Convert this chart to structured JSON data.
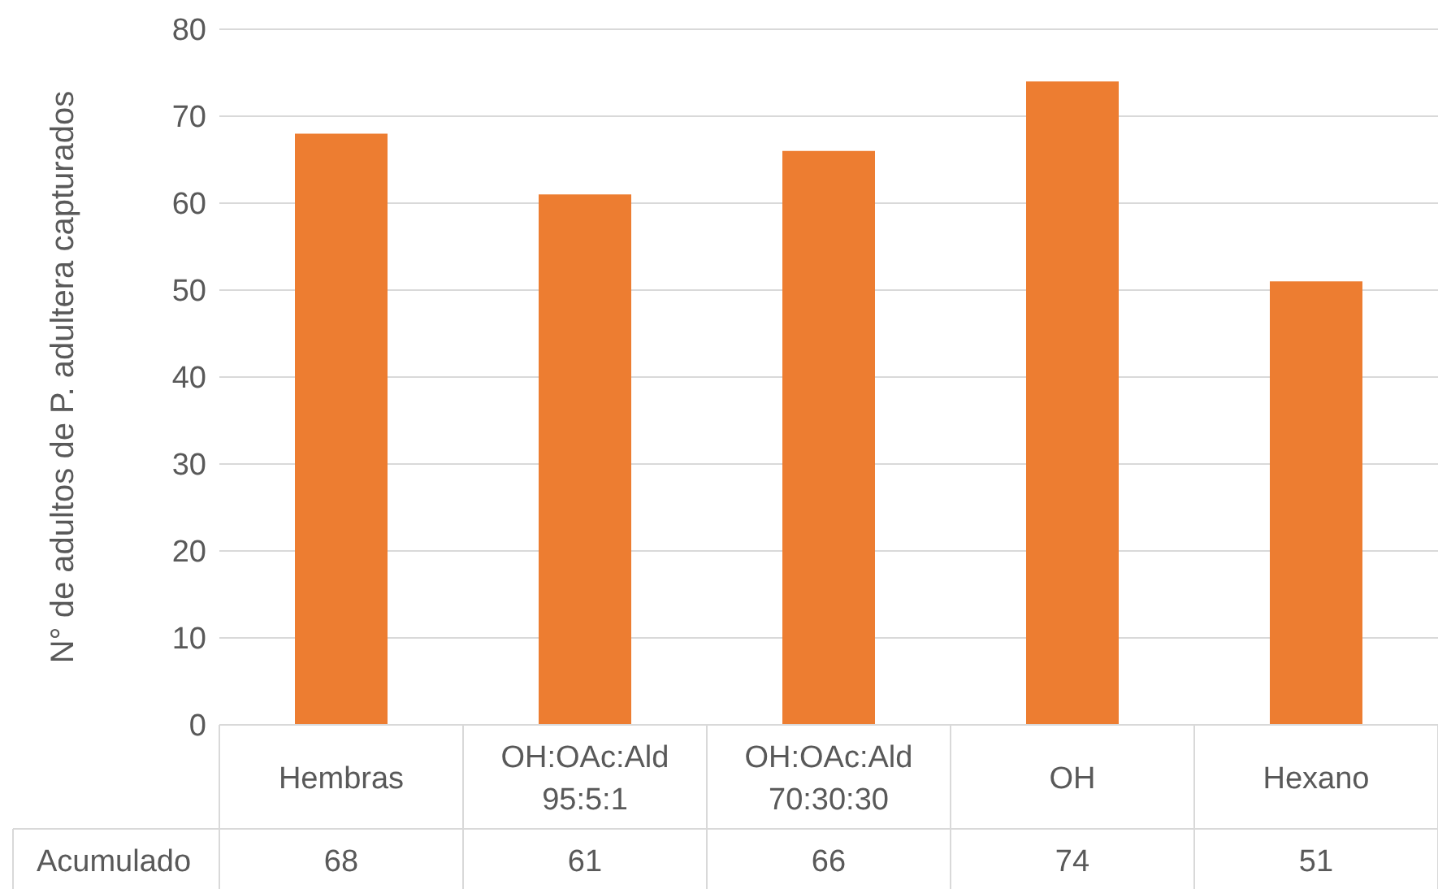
{
  "chart_data": {
    "type": "bar",
    "ylabel": "N° de adultos de P. adultera capturados",
    "categories": [
      "Hembras",
      "OH:OAc:Ald 95:5:1",
      "OH:OAc:Ald 70:30:30",
      "OH",
      "Hexano"
    ],
    "series": [
      {
        "name": "Acumulado",
        "color": "#ed7d31",
        "values": [
          68,
          61,
          66,
          74,
          51
        ]
      }
    ],
    "ylim": [
      0,
      80
    ],
    "yticks": [
      0,
      10,
      20,
      30,
      40,
      50,
      60,
      70,
      80
    ],
    "grid": "y",
    "legend": false,
    "data_labels": true
  }
}
